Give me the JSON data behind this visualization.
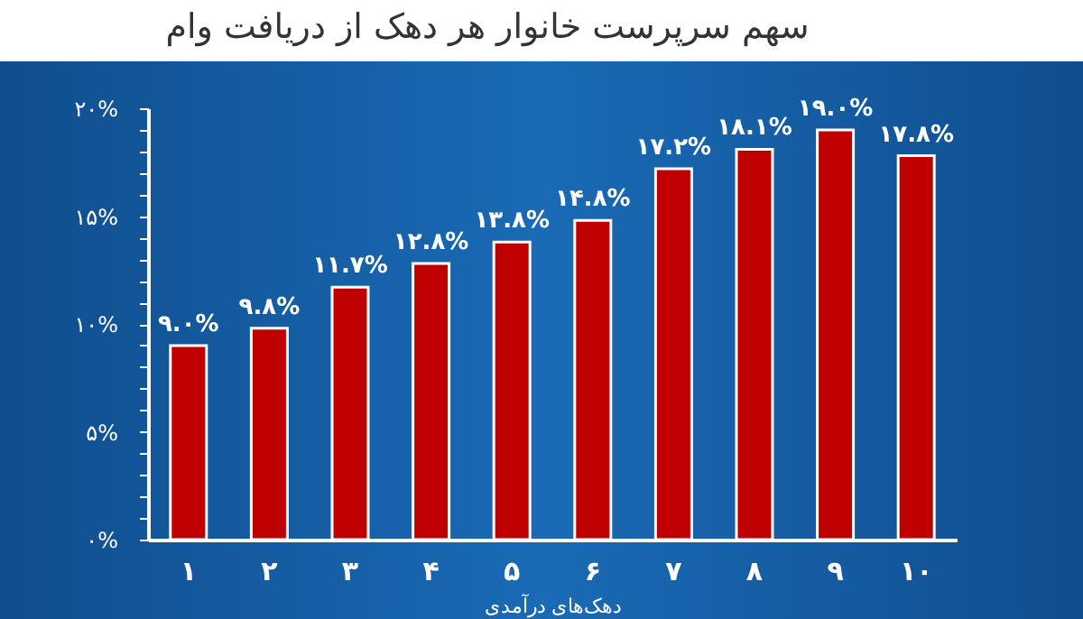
{
  "chart_data": {
    "type": "bar",
    "title": "سهم سرپرست خانوار هر دهک از دریافت وام",
    "xlabel": "دهک‌های درآمدی",
    "categories": [
      "۱",
      "۲",
      "۳",
      "۴",
      "۵",
      "۶",
      "۷",
      "۸",
      "۹",
      "۱۰"
    ],
    "values": [
      9.0,
      9.8,
      11.7,
      12.8,
      13.8,
      14.8,
      17.2,
      18.1,
      19.0,
      17.8
    ],
    "value_labels": [
      "۹.۰%",
      "۹.۸%",
      "۱۱.۷%",
      "۱۲.۸%",
      "۱۳.۸%",
      "۱۴.۸%",
      "۱۷.۲%",
      "۱۸.۱%",
      "۱۹.۰%",
      "۱۷.۸%"
    ],
    "color": "#c00000",
    "ylim": [
      0,
      20
    ],
    "yticks": [
      {
        "value": 0,
        "label": "۰%"
      },
      {
        "value": 1,
        "label": null
      },
      {
        "value": 2,
        "label": null
      },
      {
        "value": 3,
        "label": null
      },
      {
        "value": 4,
        "label": null
      },
      {
        "value": 5,
        "label": "۵%"
      },
      {
        "value": 6,
        "label": null
      },
      {
        "value": 7,
        "label": null
      },
      {
        "value": 8,
        "label": null
      },
      {
        "value": 9,
        "label": null
      },
      {
        "value": 10,
        "label": "۱۰%"
      },
      {
        "value": 11,
        "label": null
      },
      {
        "value": 12,
        "label": null
      },
      {
        "value": 13,
        "label": null
      },
      {
        "value": 14,
        "label": null
      },
      {
        "value": 15,
        "label": "۱۵%"
      },
      {
        "value": 16,
        "label": null
      },
      {
        "value": 17,
        "label": null
      },
      {
        "value": 18,
        "label": null
      },
      {
        "value": 19,
        "label": null
      },
      {
        "value": 20,
        "label": "۲۰%"
      }
    ],
    "grid": false
  }
}
